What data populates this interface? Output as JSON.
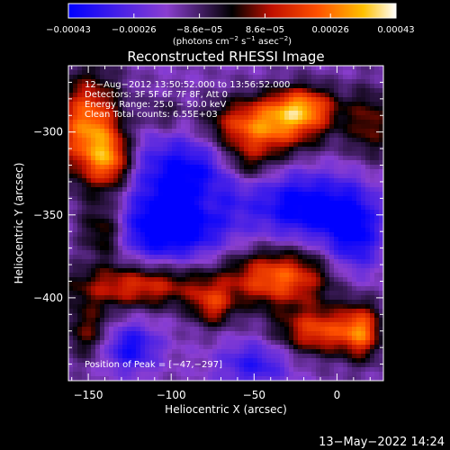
{
  "chart_data": {
    "type": "heatmap",
    "title": "Reconstructed RHESSI Image",
    "xlabel": "Heliocentric X (arcsec)",
    "ylabel": "Heliocentric Y (arcsec)",
    "xlim": [
      -162,
      28
    ],
    "ylim": [
      -450,
      -260
    ],
    "x_ticks": [
      -150,
      -100,
      -50,
      0
    ],
    "y_ticks": [
      -300,
      -350,
      -400
    ],
    "x_tick_labels": [
      "−150",
      "−100",
      "−50",
      "0"
    ],
    "y_tick_labels": [
      "−300",
      "−350",
      "−400"
    ],
    "colorbar": {
      "min": -0.00043,
      "max": 0.00043,
      "tick_labels": [
        "−0.00043",
        "−0.00026",
        "−8.6e−05",
        "8.6e−05",
        "0.00026",
        "0.00043"
      ],
      "unit_prefix": "(photons cm",
      "unit_mid1": " s",
      "unit_mid2": " asec",
      "unit_suffix": ")",
      "sup1": "−2",
      "sup2": "−1",
      "sup3": "−2"
    },
    "annotations": {
      "time": "12−Aug−2012 13:50:52.000 to 13:56:52.000",
      "detectors": "Detectors: 3F 5F 6F 7F 8F, Att 0",
      "energy": "Energy Range: 25.0 − 50.0 keV",
      "counts": "Clean    Total counts: 6.55E+03",
      "peak": "Position of Peak = [−47,−297]"
    },
    "sources": [
      {
        "x": -150,
        "y": -298,
        "sx": 14,
        "sy": 22,
        "amp": 0.00043
      },
      {
        "x": -136,
        "y": -318,
        "sx": 9,
        "sy": 12,
        "amp": 0.0003
      },
      {
        "x": -47,
        "y": -297,
        "sx": 24,
        "sy": 12,
        "amp": 0.00043
      },
      {
        "x": -20,
        "y": -285,
        "sx": 14,
        "sy": 9,
        "amp": 0.00035
      },
      {
        "x": -55,
        "y": -320,
        "sx": 12,
        "sy": 9,
        "amp": 0.0002
      },
      {
        "x": -140,
        "y": -360,
        "sx": 10,
        "sy": 12,
        "amp": 0.00025
      },
      {
        "x": -120,
        "y": -393,
        "sx": 30,
        "sy": 9,
        "amp": 0.0003
      },
      {
        "x": -75,
        "y": -405,
        "sx": 9,
        "sy": 9,
        "amp": 0.00025
      },
      {
        "x": -35,
        "y": -388,
        "sx": 22,
        "sy": 12,
        "amp": 0.00038
      },
      {
        "x": -10,
        "y": -420,
        "sx": 18,
        "sy": 10,
        "amp": 0.00034
      },
      {
        "x": 15,
        "y": -420,
        "sx": 8,
        "sy": 12,
        "amp": 0.0003
      },
      {
        "x": 20,
        "y": -295,
        "sx": 10,
        "sy": 15,
        "amp": 0.0002
      },
      {
        "x": -150,
        "y": -420,
        "sx": 10,
        "sy": 12,
        "amp": 0.0002
      },
      {
        "x": -105,
        "y": -290,
        "sx": 8,
        "sy": 8,
        "amp": 0.00012
      },
      {
        "x": -80,
        "y": -340,
        "sx": 8,
        "sy": 8,
        "amp": 0.0001
      },
      {
        "x": -90,
        "y": -330,
        "sx": 25,
        "sy": 22,
        "amp": -0.00032
      },
      {
        "x": -20,
        "y": -345,
        "sx": 20,
        "sy": 14,
        "amp": -0.0003
      },
      {
        "x": -105,
        "y": -360,
        "sx": 22,
        "sy": 12,
        "amp": -0.00028
      },
      {
        "x": 10,
        "y": -360,
        "sx": 12,
        "sy": 18,
        "amp": -0.00028
      },
      {
        "x": -125,
        "y": -430,
        "sx": 12,
        "sy": 10,
        "amp": -0.00025
      },
      {
        "x": -50,
        "y": -440,
        "sx": 15,
        "sy": 10,
        "amp": -0.0002
      }
    ],
    "grid": false
  },
  "footer": {
    "timestamp": "13−May−2022 14:24"
  }
}
